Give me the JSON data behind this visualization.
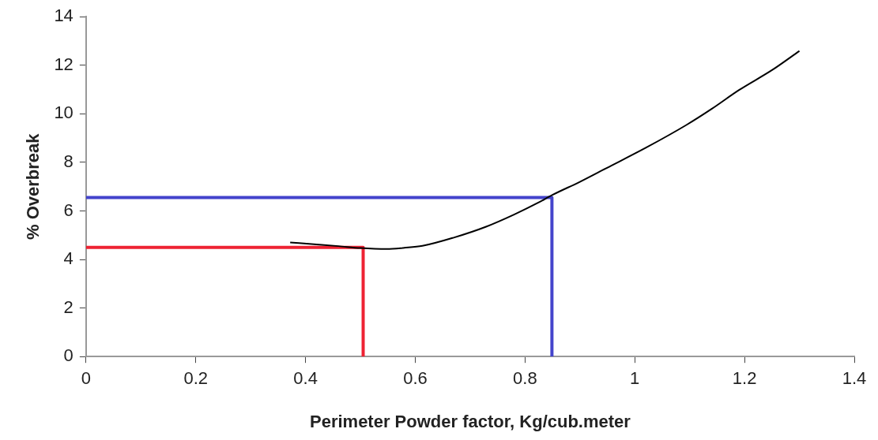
{
  "chart_data": {
    "type": "line",
    "xlabel": "Perimeter Powder factor, Kg/cub.meter",
    "ylabel": "% Overbreak",
    "xlim": [
      0,
      1.4
    ],
    "xticks": [
      0,
      0.2,
      0.4,
      0.6,
      0.8,
      1,
      1.2,
      1.4
    ],
    "ylim": [
      0,
      14
    ],
    "yticks": [
      0,
      2,
      4,
      6,
      8,
      10,
      12,
      14
    ],
    "grid": false,
    "legend": false,
    "marker": "none",
    "series": [
      {
        "color": "#000000",
        "x": [
          0.372,
          0.42,
          0.46,
          0.5,
          0.548,
          0.58,
          0.613,
          0.67,
          0.729,
          0.78,
          0.825,
          0.85,
          0.9,
          0.948,
          1.02,
          1.094,
          1.14,
          1.19,
          1.25,
          1.3
        ],
        "values": [
          4.7,
          4.62,
          4.55,
          4.47,
          4.43,
          4.48,
          4.56,
          4.9,
          5.35,
          5.85,
          6.35,
          6.66,
          7.2,
          7.76,
          8.6,
          9.54,
          10.2,
          10.98,
          11.8,
          12.59
        ]
      },
      {
        "color": "#ee2233",
        "x": [
          0,
          0.505,
          0.505
        ],
        "values": [
          4.5,
          4.5,
          0
        ]
      },
      {
        "color": "#4444cc",
        "x": [
          0,
          0.849,
          0.849
        ],
        "values": [
          6.55,
          6.55,
          0
        ]
      }
    ]
  }
}
